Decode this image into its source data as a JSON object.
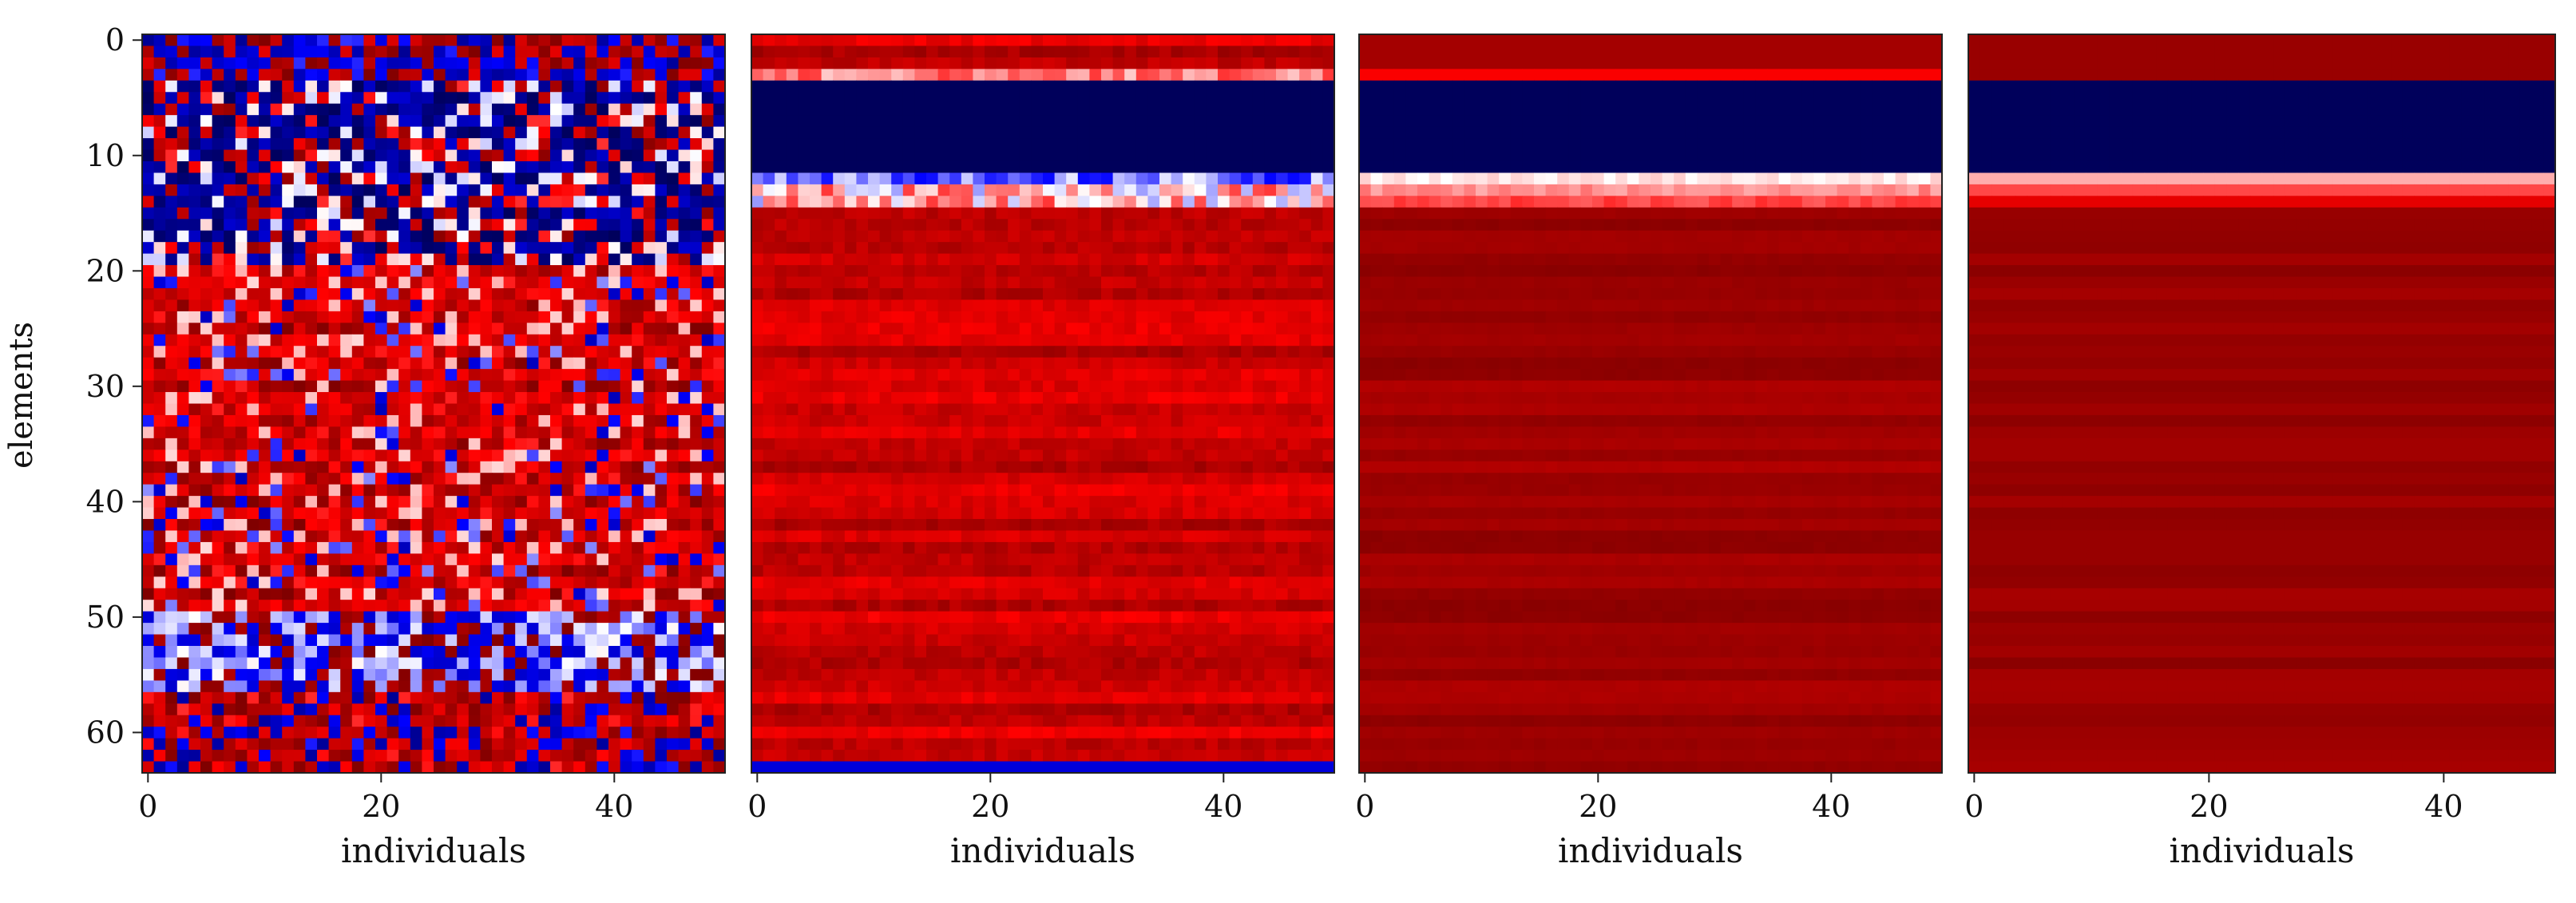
{
  "chart_data": [
    {
      "type": "heatmap",
      "pattern": "noisy",
      "colormap": "seismic",
      "rows": 64,
      "cols": 50,
      "xlabel": "individuals",
      "ylabel": "elements",
      "xticks": [
        0,
        20,
        40
      ],
      "yticks": [
        0,
        10,
        20,
        30,
        40,
        50,
        60
      ],
      "xlim": [
        0,
        49
      ],
      "ylim": [
        0,
        63
      ]
    },
    {
      "type": "heatmap",
      "pattern": "partial",
      "colormap": "seismic",
      "rows": 64,
      "cols": 50,
      "xlabel": "individuals",
      "xticks": [
        0,
        20,
        40
      ],
      "xlim": [
        0,
        49
      ],
      "bands": [
        {
          "rows": [
            4,
            11
          ],
          "level": "dark-blue"
        },
        {
          "rows": [
            12,
            14
          ],
          "level": "light-blue-white"
        },
        {
          "rows": [
            63,
            63
          ],
          "level": "blue"
        }
      ]
    },
    {
      "type": "heatmap",
      "pattern": "converged",
      "colormap": "seismic",
      "rows": 64,
      "cols": 50,
      "xlabel": "individuals",
      "xticks": [
        0,
        20,
        40
      ],
      "xlim": [
        0,
        49
      ],
      "bands": [
        {
          "rows": [
            3,
            3
          ],
          "level": "red"
        },
        {
          "rows": [
            4,
            11
          ],
          "level": "dark-blue"
        },
        {
          "rows": [
            12,
            14
          ],
          "level": "white-pink"
        }
      ]
    },
    {
      "type": "heatmap",
      "pattern": "uniform",
      "colormap": "seismic",
      "rows": 64,
      "cols": 50,
      "xlabel": "individuals",
      "xticks": [
        0,
        20,
        40
      ],
      "xlim": [
        0,
        49
      ],
      "bands": [
        {
          "rows": [
            4,
            11
          ],
          "level": "dark-blue"
        },
        {
          "rows": [
            12,
            13
          ],
          "level": "light-pink"
        }
      ]
    }
  ]
}
